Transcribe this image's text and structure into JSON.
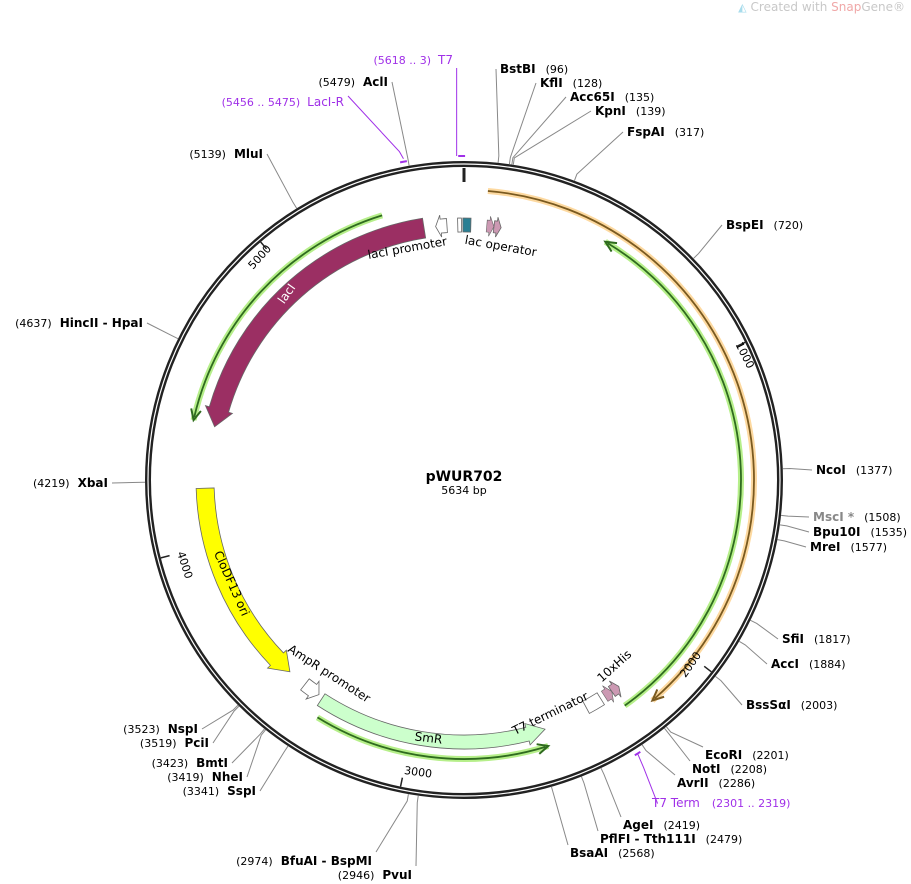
{
  "watermark": {
    "prefix": "Created with ",
    "brand": "Snap",
    "suffix": "Gene®",
    "icon": "snapgene-logo-icon"
  },
  "plasmid": {
    "name": "pWUR702",
    "length_label": "5634 bp",
    "length": 5634
  },
  "ticks": [
    {
      "pos": 1000,
      "label": "1000"
    },
    {
      "pos": 2000,
      "label": "2000"
    },
    {
      "pos": 3000,
      "label": "3000"
    },
    {
      "pos": 4000,
      "label": "4000"
    },
    {
      "pos": 5000,
      "label": "5000"
    }
  ],
  "enzymes": [
    {
      "name": "BstBI",
      "pos": 96,
      "pos_label": "(96)"
    },
    {
      "name": "KflI",
      "pos": 128,
      "pos_label": "(128)"
    },
    {
      "name": "Acc65I",
      "pos": 135,
      "pos_label": "(135)"
    },
    {
      "name": "KpnI",
      "pos": 139,
      "pos_label": "(139)"
    },
    {
      "name": "FspAI",
      "pos": 317,
      "pos_label": "(317)"
    },
    {
      "name": "BspEI",
      "pos": 720,
      "pos_label": "(720)"
    },
    {
      "name": "NcoI",
      "pos": 1377,
      "pos_label": "(1377)"
    },
    {
      "name": "MscI *",
      "pos": 1508,
      "pos_label": "(1508)",
      "color": "#888888"
    },
    {
      "name": "Bpu10I",
      "pos": 1535,
      "pos_label": "(1535)"
    },
    {
      "name": "MreI",
      "pos": 1577,
      "pos_label": "(1577)"
    },
    {
      "name": "SfiI",
      "pos": 1817,
      "pos_label": "(1817)"
    },
    {
      "name": "AccI",
      "pos": 1884,
      "pos_label": "(1884)"
    },
    {
      "name": "BssSαI",
      "pos": 2003,
      "pos_label": "(2003)"
    },
    {
      "name": "EcoRI",
      "pos": 2201,
      "pos_label": "(2201)"
    },
    {
      "name": "NotI",
      "pos": 2208,
      "pos_label": "(2208)"
    },
    {
      "name": "AvrII",
      "pos": 2286,
      "pos_label": "(2286)"
    },
    {
      "name": "AgeI",
      "pos": 2419,
      "pos_label": "(2419)"
    },
    {
      "name": "PflFI - Tth111I",
      "pos": 2479,
      "pos_label": "(2479)"
    },
    {
      "name": "BsaAI",
      "pos": 2568,
      "pos_label": "(2568)"
    },
    {
      "name": "PvuI",
      "pos": 2946,
      "pos_label": "(2946)"
    },
    {
      "name": "BfuAI - BspMI",
      "pos": 2974,
      "pos_label": "(2974)"
    },
    {
      "name": "SspI",
      "pos": 3341,
      "pos_label": "(3341)"
    },
    {
      "name": "NheI",
      "pos": 3419,
      "pos_label": "(3419)"
    },
    {
      "name": "BmtI",
      "pos": 3423,
      "pos_label": "(3423)"
    },
    {
      "name": "PciI",
      "pos": 3519,
      "pos_label": "(3519)"
    },
    {
      "name": "NspI",
      "pos": 3523,
      "pos_label": "(3523)"
    },
    {
      "name": "XbaI",
      "pos": 4219,
      "pos_label": "(4219)"
    },
    {
      "name": "HincII - HpaI",
      "pos": 4637,
      "pos_label": "(4637)"
    },
    {
      "name": "MluI",
      "pos": 5139,
      "pos_label": "(5139)"
    },
    {
      "name": "AclI",
      "pos": 5479,
      "pos_label": "(5479)"
    }
  ],
  "primers": [
    {
      "name": "T7",
      "range": "(5618 .. 3)",
      "start": 5618,
      "end": 3
    },
    {
      "name": "LacI-R",
      "range": "(5456 .. 5475)",
      "start": 5456,
      "end": 5475
    },
    {
      "name": "T7 Term",
      "range": "(2301 .. 2319)",
      "start": 2301,
      "end": 2319
    }
  ],
  "primer_color": "#a030e8",
  "features": [
    {
      "name": "lacI",
      "start": 4414,
      "end": 5493,
      "direction": "reverse",
      "color": "#9b2f63",
      "text_color": "#ffffff"
    },
    {
      "name": "lacI promoter",
      "start": 5534,
      "end": 5574,
      "direction": "reverse",
      "color": "#ffffff"
    },
    {
      "name": "",
      "start": 5612,
      "end": 5625,
      "direction": "none",
      "color": "#ffffff"
    },
    {
      "name": "",
      "start": 5630,
      "end": 24,
      "direction": "none",
      "color": "#2a7f93"
    },
    {
      "name": "lac operator",
      "start": 80,
      "end": 131,
      "direction": "forward",
      "color": "#cc99b3"
    },
    {
      "name": "CloDF13 ori",
      "start": 3478,
      "end": 4197,
      "direction": "reverse",
      "color": "#ffff00",
      "text_color": "#000000"
    },
    {
      "name": "AmpR promoter",
      "start": 3350,
      "end": 3410,
      "direction": "reverse",
      "color": "#ffffff"
    },
    {
      "name": "SmR",
      "start": 2535,
      "end": 3334,
      "direction": "reverse",
      "color": "#ccffcc",
      "text_color": "#000000"
    },
    {
      "name": "T7 terminator",
      "start": 2316,
      "end": 2375,
      "direction": "none",
      "color": "#ffffff"
    },
    {
      "name": "10xHis",
      "start": 2240,
      "end": 2300,
      "direction": "reverse",
      "color": "#cc99b3"
    }
  ],
  "orfs": [
    {
      "start": 74,
      "end": 2183,
      "direction": "forward",
      "color": "#f5a623",
      "halo": "#fdd9a0"
    },
    {
      "start": 480,
      "end": 2262,
      "direction": "reverse",
      "color": "#2f6b1f",
      "halo": "#b6ef8a"
    },
    {
      "start": 4421,
      "end": 5365,
      "direction": "reverse",
      "color": "#2f6b1f",
      "halo": "#b6ef8a"
    },
    {
      "start": 2542,
      "end": 3313,
      "direction": "reverse",
      "color": "#2f6b1f",
      "halo": "#b6ef8a"
    }
  ]
}
